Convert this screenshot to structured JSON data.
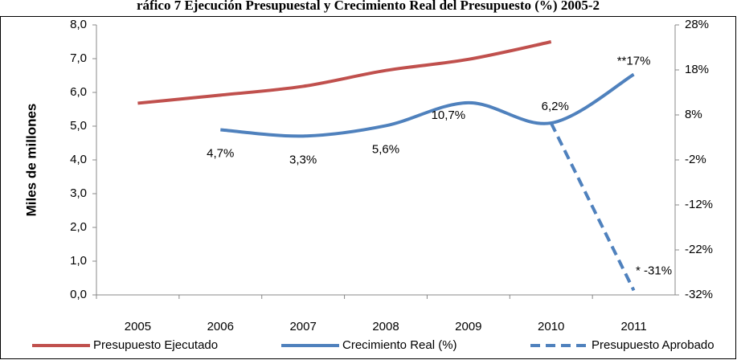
{
  "chart_data": {
    "type": "line",
    "title": "ráfico 7 Ejecución Presupuestal y Crecimiento Real del Presupuesto (%) 2005-2",
    "y_label": "Miles de millones",
    "categories": [
      "2005",
      "2006",
      "2007",
      "2008",
      "2009",
      "2010",
      "2011"
    ],
    "ylim": [
      0,
      8
    ],
    "yticks": [
      {
        "value": 0,
        "label": "0,0"
      },
      {
        "value": 1,
        "label": "1,0"
      },
      {
        "value": 2,
        "label": "2,0"
      },
      {
        "value": 3,
        "label": "3,0"
      },
      {
        "value": 4,
        "label": "4,0"
      },
      {
        "value": 5,
        "label": "5,0"
      },
      {
        "value": 6,
        "label": "6,0"
      },
      {
        "value": 7,
        "label": "7,0"
      },
      {
        "value": 8,
        "label": "8,0"
      }
    ],
    "y2lim": [
      -32,
      28
    ],
    "y2ticks": [
      {
        "value": -32,
        "label": "-32%"
      },
      {
        "value": -22,
        "label": "-22%"
      },
      {
        "value": -12,
        "label": "-12%"
      },
      {
        "value": -2,
        "label": "-2%"
      },
      {
        "value": 8,
        "label": "8%"
      },
      {
        "value": 18,
        "label": "18%"
      },
      {
        "value": 28,
        "label": "28%"
      }
    ],
    "series": [
      {
        "name": "Presupuesto Ejecutado",
        "color": "#c0504d",
        "values": [
          5.68,
          5.92,
          6.18,
          6.65,
          6.98,
          7.5,
          null
        ]
      },
      {
        "name": "Crecimiento Real (%)",
        "color": "#4f81bd",
        "axis": "y2",
        "values": [
          null,
          4.7,
          3.3,
          5.6,
          10.7,
          6.2,
          17
        ],
        "value_labels": [
          null,
          "4,7%",
          "3,3%",
          "5,6%",
          "10,7%",
          "6,2%",
          "**17%"
        ]
      },
      {
        "name": "Presupuesto Aprobado",
        "color": "#4f81bd",
        "axis": "y2",
        "dashed": true,
        "values": [
          null,
          null,
          null,
          null,
          null,
          6.2,
          -31
        ],
        "value_labels": [
          null,
          null,
          null,
          null,
          null,
          null,
          "* -31%"
        ]
      }
    ]
  }
}
